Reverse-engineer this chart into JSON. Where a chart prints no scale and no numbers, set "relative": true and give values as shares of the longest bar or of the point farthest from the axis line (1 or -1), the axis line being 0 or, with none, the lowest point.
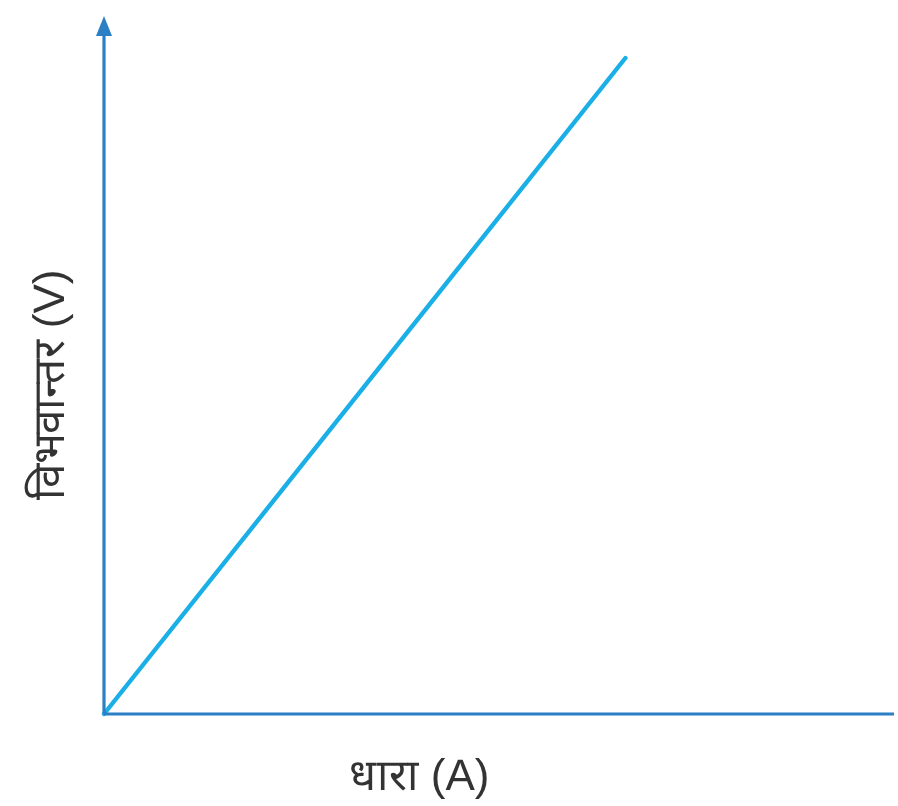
{
  "chart_data": {
    "type": "line",
    "relative": true,
    "xlabel": "धारा (A)",
    "ylabel": "विभवान्तर (V)",
    "categories": [
      null,
      null
    ],
    "series": [
      {
        "color": "#1aafe6",
        "values": [
          0,
          1
        ]
      }
    ],
    "marker": "none",
    "line_style": "solid"
  }
}
